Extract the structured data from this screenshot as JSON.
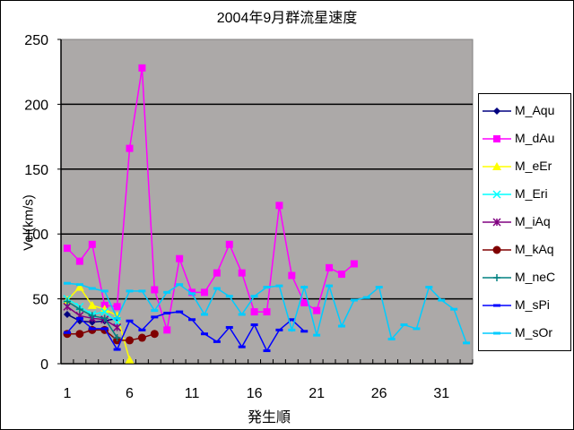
{
  "chart_data": {
    "type": "line",
    "title": "2004年9月群流星速度",
    "xlabel": "発生順",
    "ylabel": "Vel(km/s)",
    "ylim": [
      0,
      250
    ],
    "yticks": [
      0,
      50,
      100,
      150,
      200,
      250
    ],
    "xticks": [
      1,
      6,
      11,
      16,
      21,
      26,
      31
    ],
    "categories": [
      1,
      2,
      3,
      4,
      5,
      6,
      7,
      8,
      9,
      10,
      11,
      12,
      13,
      14,
      15,
      16,
      17,
      18,
      19,
      20,
      21,
      22,
      23,
      24,
      25,
      26,
      27,
      28,
      29,
      30,
      31,
      32,
      33
    ],
    "grid": "horizontal major gridlines every 50",
    "plot_background": "#aca9a8",
    "legend_position": "right",
    "series": [
      {
        "name": "M_Aqu",
        "color": "#000080",
        "marker": "diamond",
        "values": [
          38,
          33,
          32,
          33,
          35
        ]
      },
      {
        "name": "M_dAu",
        "color": "#ff00ff",
        "marker": "square",
        "values": [
          89,
          79,
          92,
          45,
          44,
          166,
          228,
          57,
          26,
          81,
          55,
          55,
          70,
          92,
          70,
          40,
          40,
          122,
          68,
          47,
          41,
          74,
          69,
          77
        ]
      },
      {
        "name": "M_eEr",
        "color": "#ffff00",
        "marker": "triangle",
        "values": [
          49,
          59,
          45,
          42,
          37,
          3
        ]
      },
      {
        "name": "M_Eri",
        "color": "#00ffff",
        "marker": "x",
        "values": [
          50,
          44,
          38,
          40,
          32
        ]
      },
      {
        "name": "M_iAq",
        "color": "#800080",
        "marker": "star",
        "values": [
          44,
          37,
          35,
          34,
          28
        ]
      },
      {
        "name": "M_kAq",
        "color": "#800000",
        "marker": "circle",
        "values": [
          23,
          23,
          26,
          26,
          18,
          18,
          20,
          23
        ]
      },
      {
        "name": "M_neC",
        "color": "#008080",
        "marker": "plus",
        "values": [
          48,
          42,
          37,
          35,
          20
        ]
      },
      {
        "name": "M_sPi",
        "color": "#0000ff",
        "marker": "dash",
        "values": [
          24,
          35,
          27,
          27,
          11,
          33,
          26,
          36,
          39,
          40,
          34,
          23,
          17,
          28,
          13,
          30,
          10,
          26,
          34,
          25
        ]
      },
      {
        "name": "M_sOr",
        "color": "#00ccff",
        "marker": "dash",
        "values": [
          62,
          61,
          58,
          56,
          35,
          56,
          56,
          41,
          55,
          61,
          54,
          38,
          58,
          52,
          38,
          52,
          59,
          60,
          26,
          59,
          22,
          60,
          29,
          49,
          51,
          59,
          19,
          30,
          27,
          59,
          49,
          42,
          16
        ]
      }
    ]
  },
  "chart": {
    "title": "2004年9月群流星速度",
    "xlabel": "発生順",
    "ylabel": "Vel(km/s)",
    "yticks": [
      "0",
      "50",
      "100",
      "150",
      "200",
      "250"
    ],
    "xticks": [
      "1",
      "6",
      "11",
      "16",
      "21",
      "26",
      "31"
    ]
  },
  "legend": {
    "items": [
      "M_Aqu",
      "M_dAu",
      "M_eEr",
      "M_Eri",
      "M_iAq",
      "M_kAq",
      "M_neC",
      "M_sPi",
      "M_sOr"
    ]
  }
}
